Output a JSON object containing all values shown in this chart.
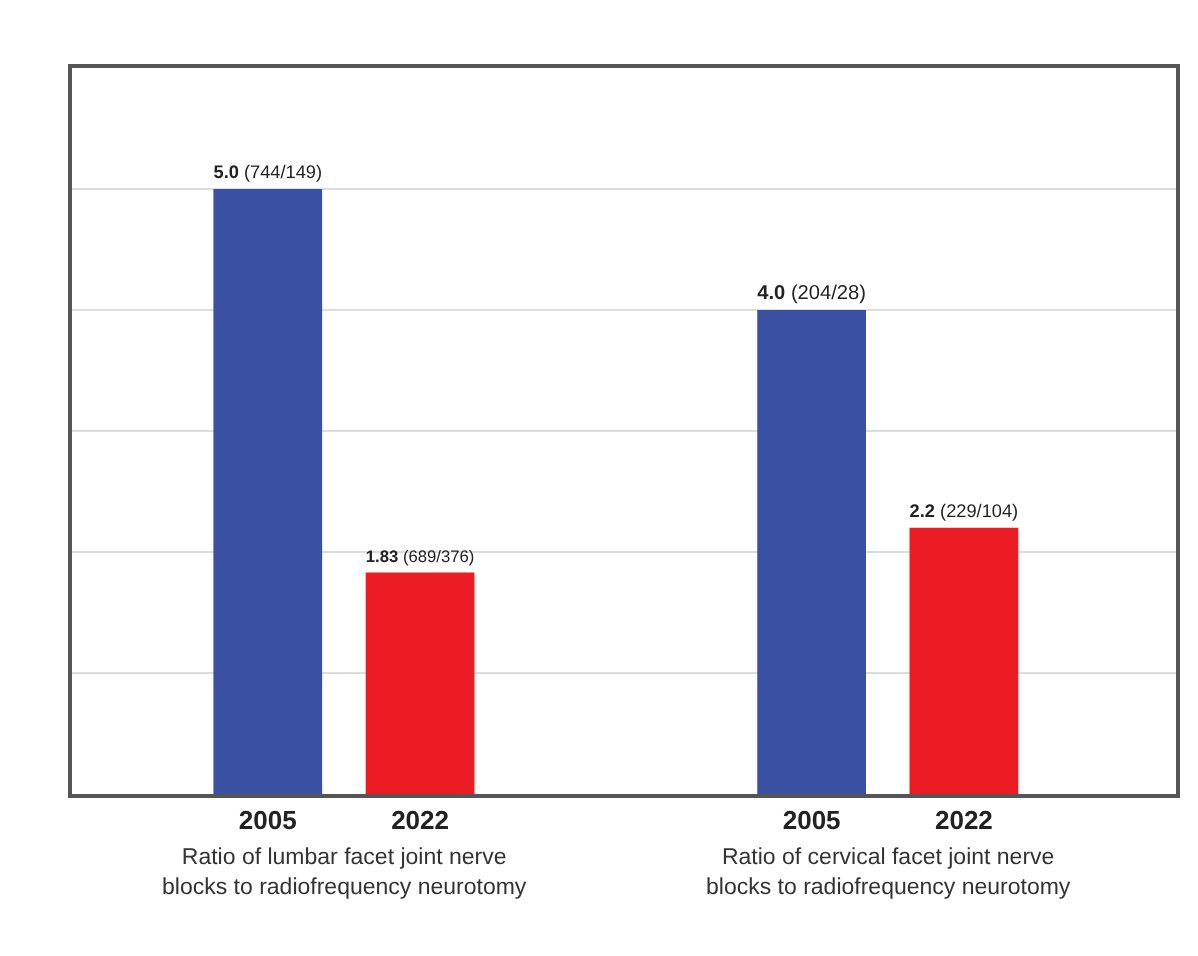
{
  "chart_data": {
    "type": "bar",
    "categories": [
      "Ratio of lumbar facet joint nerve blocks to radiofrequency neurotomy",
      "Ratio of cervical facet joint nerve blocks to radiofrequency neurotomy"
    ],
    "series": [
      {
        "name": "2005",
        "color": "#3a51a3",
        "values": [
          5.0,
          4.0
        ],
        "value_labels": [
          "5.0 (744/149)",
          "4.0 (204/28)"
        ]
      },
      {
        "name": "2022",
        "color": "#ec1c24",
        "values": [
          1.83,
          2.2
        ],
        "value_labels": [
          "1.83 (689/376)",
          "2.2 (229/104)"
        ]
      }
    ],
    "ylim": [
      0,
      6
    ],
    "yticks": [
      {
        "value": 0,
        "label": null
      },
      {
        "value": 1,
        "label": null
      },
      {
        "value": 2,
        "label": null
      },
      {
        "value": 3,
        "label": null
      },
      {
        "value": 4,
        "label": null
      },
      {
        "value": 5,
        "label": null
      },
      {
        "value": 6,
        "label": null
      }
    ],
    "grid": "y",
    "legend": false,
    "tick_labels": "x"
  }
}
